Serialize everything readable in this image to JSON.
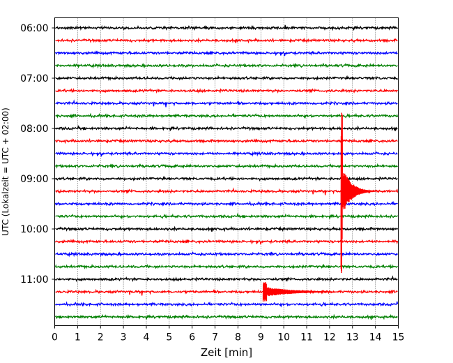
{
  "chart_data": {
    "type": "line",
    "title": "",
    "xlabel": "Zeit  [min]",
    "ylabel": "UTC (Lokalzeit = UTC + 02:00)",
    "xlim": [
      0,
      15
    ],
    "x_ticks": [
      "0",
      "1",
      "2",
      "3",
      "4",
      "5",
      "6",
      "7",
      "8",
      "9",
      "10",
      "11",
      "12",
      "13",
      "14",
      "15"
    ],
    "y_tick_labels": [
      "06:00",
      "07:00",
      "08:00",
      "09:00",
      "10:00",
      "11:00"
    ],
    "grid": "vertical-dotted",
    "trace_interval_minutes": 15,
    "trace_start_utc": "06:00",
    "trace_color_cycle": [
      "#000000",
      "#ff0000",
      "#0000ff",
      "#008000"
    ],
    "traces": [
      {
        "start": "06:00",
        "color": "#000000"
      },
      {
        "start": "06:15",
        "color": "#ff0000"
      },
      {
        "start": "06:30",
        "color": "#0000ff"
      },
      {
        "start": "06:45",
        "color": "#008000"
      },
      {
        "start": "07:00",
        "color": "#000000"
      },
      {
        "start": "07:15",
        "color": "#ff0000"
      },
      {
        "start": "07:30",
        "color": "#0000ff"
      },
      {
        "start": "07:45",
        "color": "#008000"
      },
      {
        "start": "08:00",
        "color": "#000000"
      },
      {
        "start": "08:15",
        "color": "#ff0000"
      },
      {
        "start": "08:30",
        "color": "#0000ff"
      },
      {
        "start": "08:45",
        "color": "#008000"
      },
      {
        "start": "09:00",
        "color": "#000000"
      },
      {
        "start": "09:15",
        "color": "#ff0000"
      },
      {
        "start": "09:30",
        "color": "#0000ff"
      },
      {
        "start": "09:45",
        "color": "#008000"
      },
      {
        "start": "10:00",
        "color": "#000000"
      },
      {
        "start": "10:15",
        "color": "#ff0000"
      },
      {
        "start": "10:30",
        "color": "#0000ff"
      },
      {
        "start": "10:45",
        "color": "#008000"
      },
      {
        "start": "11:00",
        "color": "#000000"
      },
      {
        "start": "11:15",
        "color": "#ff0000"
      },
      {
        "start": "11:30",
        "color": "#0000ff"
      },
      {
        "start": "11:45",
        "color": "#008000"
      }
    ],
    "events": [
      {
        "trace": "09:15",
        "onset_min": 12.5,
        "duration_min": 1.5,
        "amplitude": "very large",
        "color": "#ff0000"
      },
      {
        "trace": "11:15",
        "onset_min": 9.1,
        "duration_min": 3.0,
        "amplitude": "medium",
        "color": "#ff0000"
      }
    ]
  }
}
